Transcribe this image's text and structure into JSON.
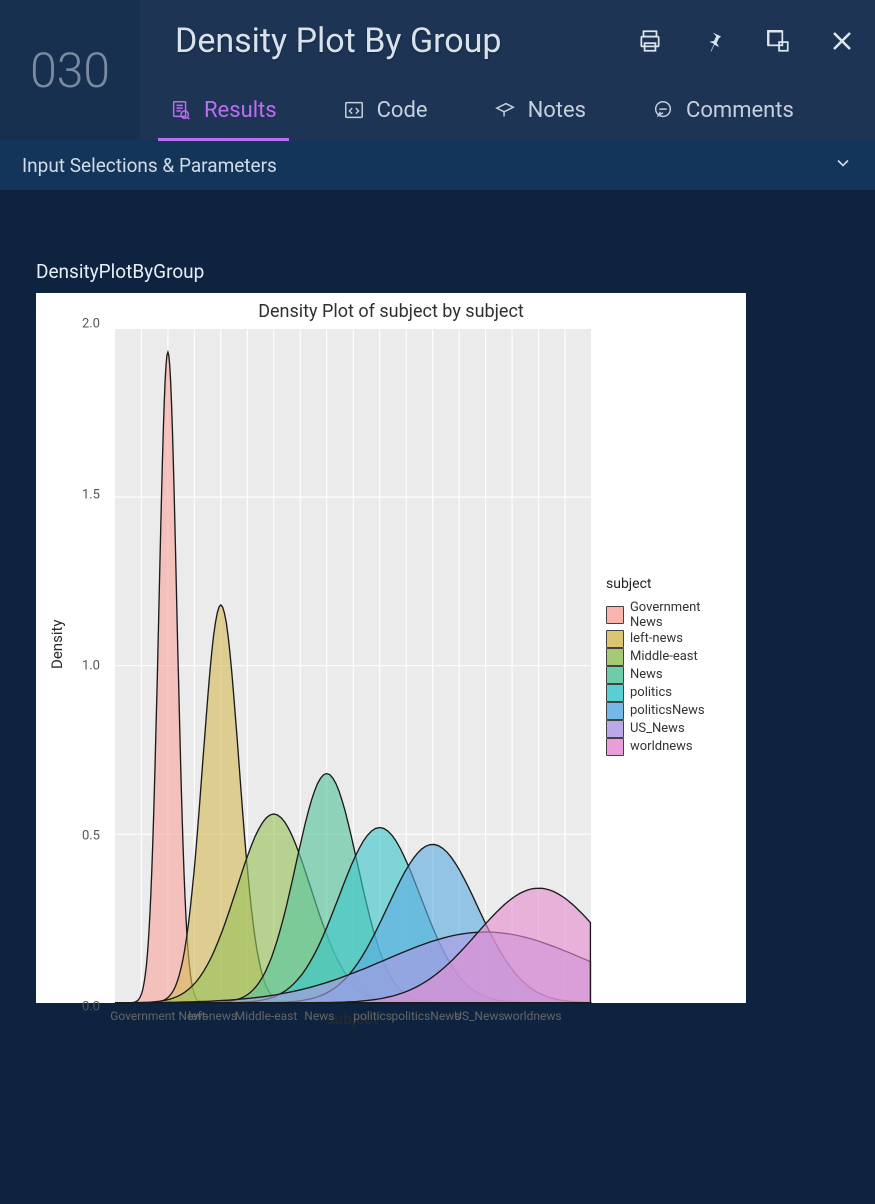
{
  "header": {
    "id_label": "030",
    "title": "Density Plot By Group"
  },
  "tabs": [
    {
      "label": "Results",
      "active": true
    },
    {
      "label": "Code",
      "active": false
    },
    {
      "label": "Notes",
      "active": false
    },
    {
      "label": "Comments",
      "active": false
    }
  ],
  "params_bar": {
    "label": "Input Selections & Parameters"
  },
  "content": {
    "chart_object_name": "DensityPlotByGroup"
  },
  "chart": {
    "type": "density",
    "title": "Density Plot of subject by subject",
    "title_fontsize": 18,
    "axis_label_fontsize": 15,
    "tick_fontsize": 13,
    "xlabel": "subject",
    "ylabel": "Density",
    "panel_bg": "#ebebeb",
    "grid_color": "#ffffff",
    "outline_color": "#1a1a1a",
    "outline_width": 1.2,
    "fill_opacity": 0.62,
    "y": {
      "min": 0.0,
      "max": 2.0,
      "ticks": [
        0.0,
        0.5,
        1.0,
        1.5,
        2.0
      ]
    },
    "x": {
      "min": 0,
      "max": 9,
      "categories": [
        "Government News",
        "left-news",
        "Middle-east",
        "News",
        "politics",
        "politicsNews",
        "US_News",
        "worldnews"
      ],
      "positions": [
        1,
        2,
        3,
        4,
        5,
        6,
        7,
        8
      ]
    },
    "legend": {
      "title": "subject",
      "position": "right",
      "items_are_categories": true
    },
    "series": [
      {
        "name": "Government News",
        "color": "#f8a7a0",
        "center": 1.0,
        "peak": 1.93,
        "spread": 0.17
      },
      {
        "name": "left-news",
        "color": "#d7bb5a",
        "center": 2.0,
        "peak": 1.18,
        "spread": 0.34
      },
      {
        "name": "Middle-east",
        "color": "#97c15b",
        "center": 3.0,
        "peak": 0.56,
        "spread": 0.7
      },
      {
        "name": "News",
        "color": "#55c59b",
        "center": 4.0,
        "peak": 0.68,
        "spread": 0.58
      },
      {
        "name": "politics",
        "color": "#3dc7cc",
        "center": 5.0,
        "peak": 0.52,
        "spread": 0.77
      },
      {
        "name": "politicsNews",
        "color": "#5eace4",
        "center": 6.0,
        "peak": 0.47,
        "spread": 0.85
      },
      {
        "name": "US_News",
        "color": "#af9ae4",
        "center": 7.0,
        "peak": 0.21,
        "spread": 1.9
      },
      {
        "name": "worldnews",
        "color": "#e68ed1",
        "center": 8.0,
        "peak": 0.34,
        "spread": 1.16
      }
    ]
  }
}
